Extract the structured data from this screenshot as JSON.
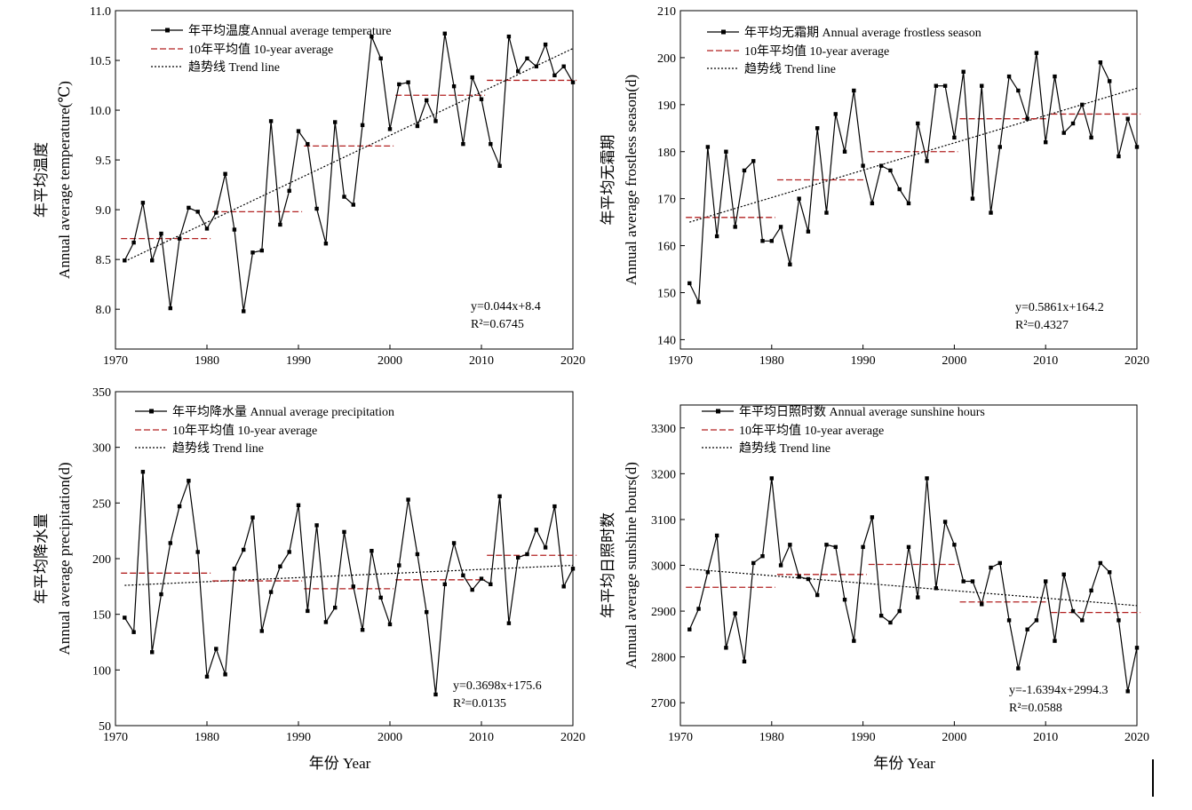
{
  "chart_data": [
    {
      "type": "line",
      "ylabel_cn": "年平均温度",
      "ylabel_en": "Annual   average temperature(℃)",
      "xlabel": "",
      "xlim": [
        1970,
        2020
      ],
      "ylim": [
        7.6,
        11.0
      ],
      "xticks": [
        "1970",
        "1980",
        "1990",
        "2000",
        "2010",
        "2020"
      ],
      "yticks": [
        "8.0",
        "8.5",
        "9.0",
        "9.5",
        "10.0",
        "10.5",
        "11.0"
      ],
      "legend": {
        "placement": "top-left",
        "entries": [
          "年平均温度Annual average temperature",
          "10年平均值 10-year average",
          "趋势线 Trend line"
        ]
      },
      "equation": "y=0.044x+8.4",
      "r2": "R²=0.6745",
      "series": [
        {
          "name": "年平均温度Annual average temperature",
          "x": [
            1971,
            1972,
            1973,
            1974,
            1975,
            1976,
            1977,
            1978,
            1979,
            1980,
            1981,
            1982,
            1983,
            1984,
            1985,
            1986,
            1987,
            1988,
            1989,
            1990,
            1991,
            1992,
            1993,
            1994,
            1995,
            1996,
            1997,
            1998,
            1999,
            2000,
            2001,
            2002,
            2003,
            2004,
            2005,
            2006,
            2007,
            2008,
            2009,
            2010,
            2011,
            2012,
            2013,
            2014,
            2015,
            2016,
            2017,
            2018,
            2019,
            2020
          ],
          "values": [
            8.49,
            8.67,
            9.07,
            8.49,
            8.76,
            8.01,
            8.71,
            9.02,
            8.98,
            8.81,
            8.97,
            9.36,
            8.8,
            7.98,
            8.57,
            8.59,
            9.89,
            8.85,
            9.19,
            9.79,
            9.66,
            9.01,
            8.66,
            9.88,
            9.13,
            9.05,
            9.85,
            10.74,
            10.52,
            9.81,
            10.26,
            10.28,
            9.84,
            10.1,
            9.89,
            10.77,
            10.24,
            9.66,
            10.33,
            10.11,
            9.66,
            9.44,
            10.74,
            10.39,
            10.52,
            10.44,
            10.66,
            10.35,
            10.44,
            10.28
          ]
        },
        {
          "name": "10年平均值 10-year average",
          "segments": [
            [
              1971,
              1980,
              8.71
            ],
            [
              1981,
              1990,
              8.98
            ],
            [
              1991,
              2000,
              9.64
            ],
            [
              2001,
              2010,
              10.15
            ],
            [
              2011,
              2020,
              10.3
            ]
          ]
        },
        {
          "name": "趋势线 Trend line",
          "trend": [
            [
              1971,
              8.48
            ],
            [
              2020,
              10.62
            ]
          ]
        }
      ]
    },
    {
      "type": "line",
      "ylabel_cn": "年平均无霜期",
      "ylabel_en": "Annual average frostless season(d)",
      "xlabel": "",
      "xlim": [
        1970,
        2020
      ],
      "ylim": [
        138,
        210
      ],
      "xticks": [
        "1970",
        "1980",
        "1990",
        "2000",
        "2010",
        "2020"
      ],
      "yticks": [
        "140",
        "150",
        "160",
        "170",
        "180",
        "190",
        "200",
        "210"
      ],
      "legend": {
        "placement": "top-left",
        "entries": [
          "年平均无霜期 Annual average frostless season",
          "10年平均值 10-year average",
          "趋势线 Trend line"
        ]
      },
      "equation": "y=0.5861x+164.2",
      "r2": "R²=0.4327",
      "series": [
        {
          "name": "年平均无霜期 Annual average frostless season",
          "x": [
            1971,
            1972,
            1973,
            1974,
            1975,
            1976,
            1977,
            1978,
            1979,
            1980,
            1981,
            1982,
            1983,
            1984,
            1985,
            1986,
            1987,
            1988,
            1989,
            1990,
            1991,
            1992,
            1993,
            1994,
            1995,
            1996,
            1997,
            1998,
            1999,
            2000,
            2001,
            2002,
            2003,
            2004,
            2005,
            2006,
            2007,
            2008,
            2009,
            2010,
            2011,
            2012,
            2013,
            2014,
            2015,
            2016,
            2017,
            2018,
            2019,
            2020
          ],
          "values": [
            152,
            148,
            181,
            162,
            180,
            164,
            176,
            178,
            161,
            161,
            164,
            156,
            170,
            163,
            185,
            167,
            188,
            180,
            193,
            177,
            169,
            177,
            176,
            172,
            169,
            186,
            178,
            194,
            194,
            183,
            197,
            170,
            194,
            167,
            181,
            196,
            193,
            187,
            201,
            182,
            196,
            184,
            186,
            190,
            183,
            199,
            195,
            179,
            187,
            181
          ]
        },
        {
          "name": "10年平均值 10-year average",
          "segments": [
            [
              1971,
              1980,
              166
            ],
            [
              1981,
              1990,
              174
            ],
            [
              1991,
              2000,
              180
            ],
            [
              2001,
              2010,
              187
            ],
            [
              2011,
              2020,
              188
            ]
          ]
        },
        {
          "name": "趋势线 Trend line",
          "trend": [
            [
              1971,
              165
            ],
            [
              2020,
              193.5
            ]
          ]
        }
      ]
    },
    {
      "type": "line",
      "ylabel_cn": "年平均降水量",
      "ylabel_en": "Annual average precipitation(d)",
      "xlabel": "年份 Year",
      "xlim": [
        1970,
        2020
      ],
      "ylim": [
        50,
        350
      ],
      "xticks": [
        "1970",
        "1980",
        "1990",
        "2000",
        "2010",
        "2020"
      ],
      "yticks": [
        "50",
        "100",
        "150",
        "200",
        "250",
        "300",
        "350"
      ],
      "legend": {
        "placement": "top-left",
        "entries": [
          "年平均降水量 Annual average precipitation",
          "10年平均值 10-year average",
          "趋势线 Trend line"
        ]
      },
      "equation": "y=0.3698x+175.6",
      "r2": "R²=0.0135",
      "series": [
        {
          "name": "年平均降水量 Annual average precipitation",
          "x": [
            1971,
            1972,
            1973,
            1974,
            1975,
            1976,
            1977,
            1978,
            1979,
            1980,
            1981,
            1982,
            1983,
            1984,
            1985,
            1986,
            1987,
            1988,
            1989,
            1990,
            1991,
            1992,
            1993,
            1994,
            1995,
            1996,
            1997,
            1998,
            1999,
            2000,
            2001,
            2002,
            2003,
            2004,
            2005,
            2006,
            2007,
            2008,
            2009,
            2010,
            2011,
            2012,
            2013,
            2014,
            2015,
            2016,
            2017,
            2018,
            2019,
            2020
          ],
          "values": [
            147,
            134,
            278,
            116,
            168,
            214,
            247,
            270,
            206,
            94,
            119,
            96,
            191,
            208,
            237,
            135,
            170,
            193,
            206,
            248,
            153,
            230,
            143,
            156,
            224,
            175,
            136,
            207,
            165,
            141,
            194,
            253,
            204,
            152,
            78,
            177,
            214,
            185,
            172,
            182,
            177,
            256,
            142,
            201,
            204,
            226,
            210,
            247,
            175,
            191
          ]
        },
        {
          "name": "10年平均值 10-year average",
          "segments": [
            [
              1971,
              1980,
              187
            ],
            [
              1981,
              1990,
              180
            ],
            [
              1991,
              2000,
              173
            ],
            [
              2001,
              2010,
              181
            ],
            [
              2011,
              2020,
              203
            ]
          ]
        },
        {
          "name": "趋势线 Trend line",
          "trend": [
            [
              1971,
              176
            ],
            [
              2020,
              194
            ]
          ]
        }
      ]
    },
    {
      "type": "line",
      "ylabel_cn": "年平均日照时数",
      "ylabel_en": "Annual average sunshine hours(d)",
      "xlabel": "年份 Year",
      "xlim": [
        1970,
        2020
      ],
      "ylim": [
        2650,
        3350
      ],
      "xticks": [
        "1970",
        "1980",
        "1990",
        "2000",
        "2010",
        "2020"
      ],
      "yticks": [
        "2700",
        "2800",
        "2900",
        "3000",
        "3100",
        "3200",
        "3300"
      ],
      "legend": {
        "placement": "top-left",
        "entries": [
          "年平均日照时数 Annual average sunshine hours",
          "10年平均值 10-year average",
          "趋势线 Trend line"
        ]
      },
      "equation": "y=-1.6394x+2994.3",
      "r2": "R²=0.0588",
      "series": [
        {
          "name": "年平均日照时数 Annual average sunshine hours",
          "x": [
            1971,
            1972,
            1973,
            1974,
            1975,
            1976,
            1977,
            1978,
            1979,
            1980,
            1981,
            1982,
            1983,
            1984,
            1985,
            1986,
            1987,
            1988,
            1989,
            1990,
            1991,
            1992,
            1993,
            1994,
            1995,
            1996,
            1997,
            1998,
            1999,
            2000,
            2001,
            2002,
            2003,
            2004,
            2005,
            2006,
            2007,
            2008,
            2009,
            2010,
            2011,
            2012,
            2013,
            2014,
            2015,
            2016,
            2017,
            2018,
            2019,
            2020
          ],
          "values": [
            2860,
            2905,
            2985,
            3065,
            2820,
            2895,
            2790,
            3005,
            3020,
            3190,
            3000,
            3045,
            2975,
            2970,
            2935,
            3045,
            3040,
            2925,
            2835,
            3040,
            3105,
            2890,
            2875,
            2900,
            3040,
            2930,
            3190,
            2950,
            3095,
            3045,
            2965,
            2965,
            2915,
            2995,
            3005,
            2880,
            2775,
            2860,
            2880,
            2965,
            2835,
            2980,
            2900,
            2880,
            2945,
            3005,
            2985,
            2880,
            2725,
            2820
          ]
        },
        {
          "name": "10年平均值 10-year average",
          "segments": [
            [
              1971,
              1980,
              2952
            ],
            [
              1981,
              1990,
              2980
            ],
            [
              1991,
              2000,
              3002
            ],
            [
              2001,
              2010,
              2920
            ],
            [
              2011,
              2020,
              2897
            ]
          ]
        },
        {
          "name": "趋势线 Trend line",
          "trend": [
            [
              1971,
              2992
            ],
            [
              2020,
              2912
            ]
          ]
        }
      ]
    }
  ]
}
